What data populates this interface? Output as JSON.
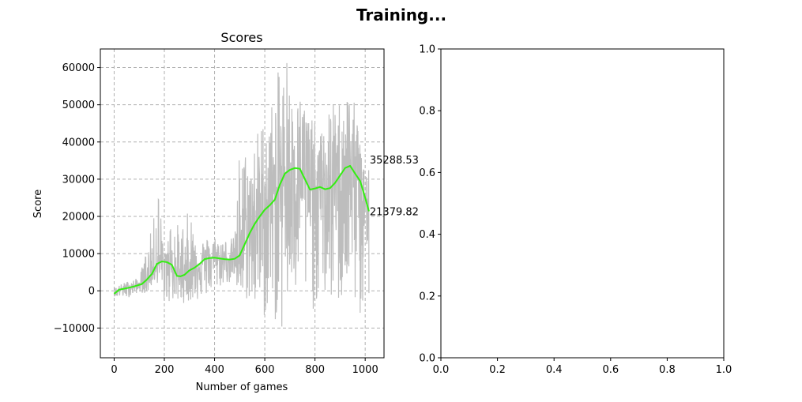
{
  "figure": {
    "title": "Training..."
  },
  "chart_data": [
    {
      "type": "line",
      "title": "Scores",
      "xlabel": "Number of games",
      "ylabel": "Score",
      "xlim": [
        -55,
        1075
      ],
      "ylim": [
        -18000,
        65000
      ],
      "xticks": [
        0,
        200,
        400,
        600,
        800,
        1000
      ],
      "xtick_labels": [
        "0",
        "200",
        "400",
        "600",
        "800",
        "1000"
      ],
      "yticks": [
        -10000,
        0,
        10000,
        20000,
        30000,
        40000,
        50000,
        60000
      ],
      "ytick_labels": [
        "−10000",
        "0",
        "10000",
        "20000",
        "30000",
        "40000",
        "50000",
        "60000"
      ],
      "grid": true,
      "grid_style": "dashed",
      "series": [
        {
          "role": "raw",
          "color": "#bdbdbd",
          "envelope_x": [
            0,
            50,
            100,
            130,
            155,
            175,
            200,
            230,
            260,
            300,
            350,
            400,
            450,
            480,
            500,
            540,
            560,
            600,
            630,
            660,
            690,
            720,
            750,
            780,
            820,
            860,
            900,
            930,
            960,
            990,
            1015
          ],
          "envelope_high": [
            1000,
            2500,
            3500,
            12000,
            18000,
            30800,
            9000,
            22000,
            17000,
            22000,
            14000,
            15000,
            14000,
            14500,
            40000,
            38000,
            42000,
            48000,
            52000,
            61000,
            58000,
            50000,
            55000,
            48000,
            42000,
            50000,
            52000,
            55000,
            50000,
            40000,
            38000
          ],
          "envelope_low": [
            -1500,
            -2000,
            -300,
            -1000,
            2000,
            2000,
            -4000,
            -3000,
            -3500,
            -3000,
            -2500,
            0,
            2000,
            1000,
            -3000,
            -3000,
            -6000,
            -8000,
            -5000,
            -14000,
            -7000,
            -4000,
            -2000,
            -7000,
            -2000,
            -4000,
            -5000,
            -3000,
            -5000,
            -10000,
            -8000
          ],
          "visible_peak": {
            "x": 688,
            "y": 61200
          }
        },
        {
          "role": "moving-average",
          "color": "#33ee11",
          "x": [
            0,
            20,
            50,
            80,
            110,
            130,
            150,
            170,
            190,
            210,
            230,
            250,
            265,
            280,
            300,
            320,
            340,
            360,
            380,
            400,
            420,
            440,
            460,
            480,
            500,
            520,
            540,
            560,
            580,
            600,
            620,
            640,
            660,
            680,
            700,
            720,
            740,
            760,
            780,
            800,
            820,
            840,
            860,
            880,
            900,
            920,
            940,
            960,
            980,
            1000,
            1015
          ],
          "values": [
            -800,
            300,
            700,
            1200,
            1800,
            3000,
            4500,
            7200,
            7900,
            7700,
            7000,
            4000,
            3900,
            4300,
            5500,
            6200,
            7200,
            8500,
            8800,
            8900,
            8700,
            8500,
            8400,
            8600,
            9500,
            12500,
            15500,
            18000,
            20000,
            21800,
            23000,
            24500,
            28500,
            31500,
            32500,
            33000,
            32800,
            30000,
            27200,
            27500,
            27900,
            27300,
            27600,
            29000,
            31000,
            33000,
            33600,
            31500,
            29500,
            25000,
            21379.82
          ]
        }
      ],
      "annotations": [
        {
          "text": "35288.53",
          "x": 1018,
          "y": 35288.53
        },
        {
          "text": "21379.82",
          "x": 1018,
          "y": 21379.82
        }
      ]
    },
    {
      "type": "line",
      "title": "",
      "xlim": [
        0,
        1
      ],
      "ylim": [
        0,
        1
      ],
      "xticks": [
        0,
        0.2,
        0.4,
        0.6,
        0.8,
        1.0
      ],
      "xtick_labels": [
        "0.0",
        "0.2",
        "0.4",
        "0.6",
        "0.8",
        "1.0"
      ],
      "yticks": [
        0,
        0.2,
        0.4,
        0.6,
        0.8,
        1.0
      ],
      "ytick_labels": [
        "0.0",
        "0.2",
        "0.4",
        "0.6",
        "0.8",
        "1.0"
      ],
      "grid": false,
      "series": []
    }
  ]
}
